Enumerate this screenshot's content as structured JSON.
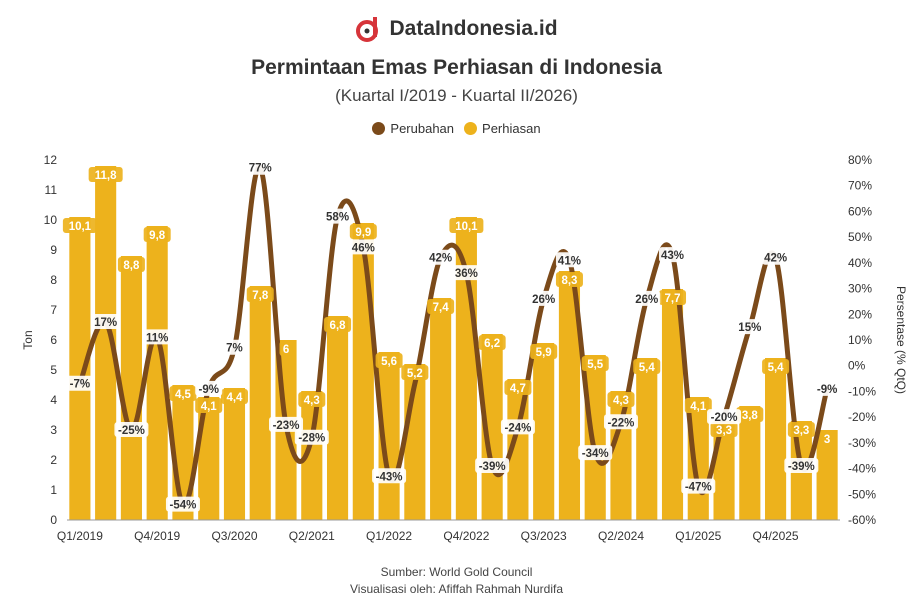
{
  "header": {
    "brand_name": "DataIndonesia.id",
    "title": "Permintaan Emas Perhiasan di Indonesia",
    "subtitle": "(Kuartal I/2019 - Kuartal II/2026)"
  },
  "footer": {
    "source": "Sumber: World Gold Council",
    "credit": "Visualisasi oleh: Afiffah Rahmah Nurdifa"
  },
  "colors": {
    "bar": "#EDB21C",
    "line": "#7B4A1A",
    "brand_red": "#D6343A"
  },
  "icons": {
    "brand": "dataindonesia-logo-icon"
  },
  "chart_data": {
    "type": "bar+line",
    "categories": [
      "Q1/2019",
      "Q2/2019",
      "Q3/2019",
      "Q4/2019",
      "Q1/2020",
      "Q2/2020",
      "Q3/2020",
      "Q4/2020",
      "Q1/2021",
      "Q2/2021",
      "Q3/2021",
      "Q4/2021",
      "Q1/2022",
      "Q2/2022",
      "Q3/2022",
      "Q4/2022",
      "Q1/2023",
      "Q2/2023",
      "Q3/2023",
      "Q4/2023",
      "Q1/2024",
      "Q2/2024",
      "Q3/2024",
      "Q4/2024",
      "Q1/2025",
      "Q2/2025",
      "Q3/2025",
      "Q4/2025",
      "Q1/2026",
      "Q2/2026"
    ],
    "x_tick_labels": [
      "Q1/2019",
      "Q4/2019",
      "Q3/2020",
      "Q2/2021",
      "Q1/2022",
      "Q4/2022",
      "Q3/2023",
      "Q2/2024",
      "Q1/2025",
      "Q4/2025"
    ],
    "x_tick_indices": [
      0,
      3,
      6,
      9,
      12,
      15,
      18,
      21,
      24,
      27
    ],
    "series": [
      {
        "name": "Perhiasan",
        "type": "bar",
        "axis": "left",
        "values": [
          10.1,
          11.8,
          8.8,
          9.8,
          4.5,
          4.1,
          4.4,
          7.8,
          6,
          4.3,
          6.8,
          9.9,
          5.6,
          5.2,
          7.4,
          10.1,
          6.2,
          4.7,
          5.9,
          8.3,
          5.5,
          4.3,
          5.4,
          7.7,
          4.1,
          3.3,
          3.8,
          5.4,
          3.3,
          3
        ],
        "labels": [
          "10,1",
          "11,8",
          "8,8",
          "9,8",
          "4,5",
          "4,1",
          "4,4",
          "7,8",
          "6",
          "4,3",
          "6,8",
          "9,9",
          "5,6",
          "5,2",
          "7,4",
          "10,1",
          "6,2",
          "4,7",
          "5,9",
          "8,3",
          "5,5",
          "4,3",
          "5,4",
          "7,7",
          "4,1",
          "3,3",
          "3,8",
          "5,4",
          "3,3",
          "3"
        ]
      },
      {
        "name": "Perubahan",
        "type": "line",
        "axis": "right",
        "values": [
          -7,
          17,
          -25,
          11,
          -54,
          -9,
          7,
          77,
          -23,
          -28,
          58,
          46,
          -43,
          -7,
          42,
          36,
          -39,
          -24,
          26,
          41,
          -34,
          -22,
          26,
          43,
          -47,
          -20,
          15,
          42,
          -39,
          -9
        ],
        "labels": [
          "-7%",
          "17%",
          "-25%",
          "11%",
          "-54%",
          "-9%",
          "7%",
          "77%",
          "-23%",
          "-28%",
          "58%",
          "46%",
          "-43%",
          "",
          "42%",
          "36%",
          "-39%",
          "-24%",
          "26%",
          "41%",
          "-34%",
          "-22%",
          "26%",
          "43%",
          "-47%",
          "-20%",
          "15%",
          "42%",
          "-39%",
          "-9%"
        ]
      }
    ],
    "y_left": {
      "label": "Ton",
      "min": 0,
      "max": 12,
      "ticks": [
        0,
        1,
        2,
        3,
        4,
        5,
        6,
        7,
        8,
        9,
        10,
        11,
        12
      ]
    },
    "y_right": {
      "label": "Persentase (% QtQ)",
      "min": -60,
      "max": 80,
      "ticks": [
        "-60%",
        "-50%",
        "-40%",
        "-30%",
        "-20%",
        "-10%",
        "0%",
        "10%",
        "20%",
        "30%",
        "40%",
        "50%",
        "60%",
        "70%",
        "80%"
      ]
    },
    "grid": false,
    "legend_position": "top-center"
  }
}
